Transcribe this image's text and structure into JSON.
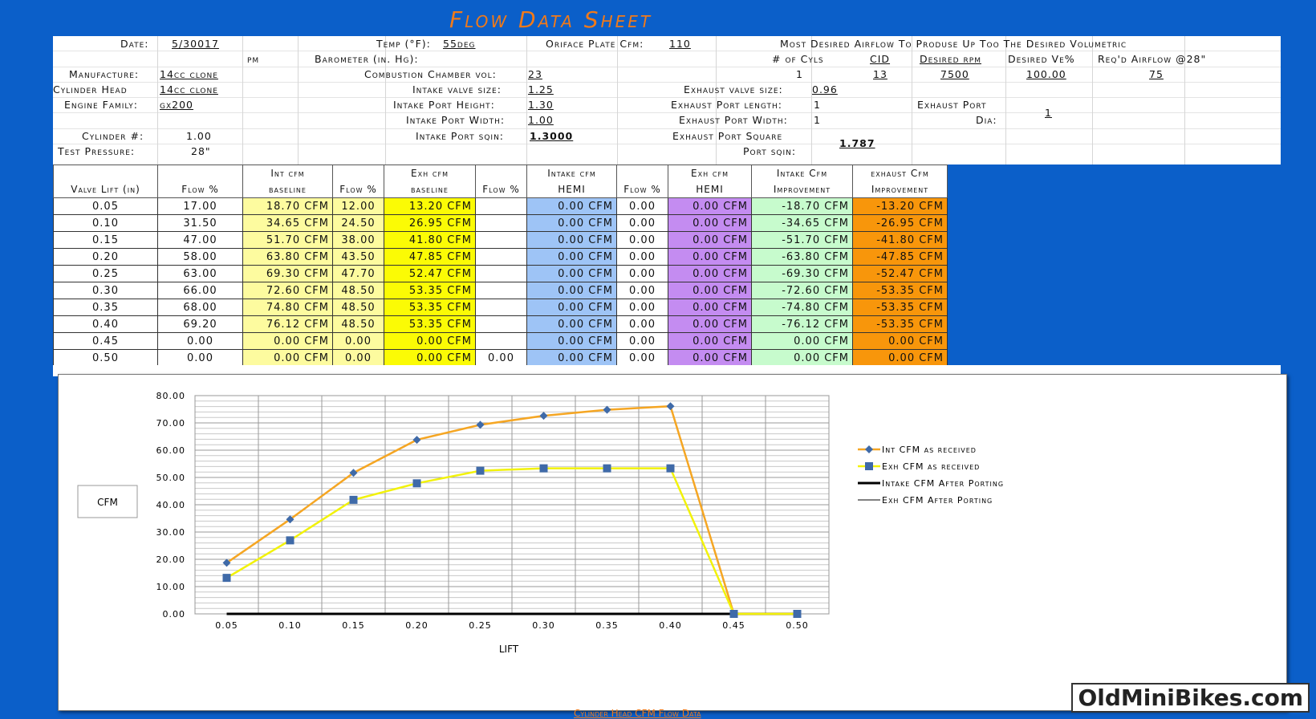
{
  "title": "Flow Data Sheet",
  "header": {
    "date_label": "Date:",
    "date": "5/30017",
    "pm": "pm",
    "temp_label": "Temp (°F):",
    "temp": "55deg",
    "orifice_label": "Oriface Plate Cfm:",
    "orifice": "110",
    "desired_note": "Most Desired Airflow To Produse Up Too The Desired Volumetric",
    "barometer_label": "Barometer (in. Hg):",
    "cyls_label": "# of Cyls",
    "cyls": "1",
    "cid_label": "CID",
    "cid": "13",
    "rpm_label": "Desired rpm",
    "rpm": "7500",
    "ve_label": "Desired Ve%",
    "ve": "100.00",
    "reqd_label": "Req'd Airflow @28\"",
    "reqd": "75",
    "manufacture_label": "Manufacture:",
    "manufacture": "14cc clone",
    "chamber_label": "Combustion Chamber vol:",
    "chamber": "23",
    "head_label": "Cylinder Head",
    "head": "14cc clone",
    "intake_size_label": "Intake valve size:",
    "intake_size": "1.25",
    "exhaust_size_label": "Exhaust valve size:",
    "exhaust_size": "0.96",
    "family_label": "Engine Family:",
    "family": "gx200",
    "intake_height_label": "Intake Port Height:",
    "intake_height": "1.30",
    "exhaust_length_label": "Exhaust Port length:",
    "exhaust_length": "1",
    "exhaust_port_label": "Exhaust Port",
    "dia_label": "Dia:",
    "dia": "1",
    "intake_width_label": "Intake Port Width:",
    "intake_width": "1.00",
    "exhaust_width_label": "Exhaust Port Width:",
    "exhaust_width": "1",
    "cylinder_label": "Cylinder #:",
    "cylinder": "1.00",
    "intake_sqin_label": "Intake Port sqin:",
    "intake_sqin": "1.3000",
    "exhaust_square_label": "Exhaust Port Square",
    "port_sqin_label": "Port sqin:",
    "exhaust_sqin": "1.787",
    "test_pressure_label": "Test Pressure:",
    "test_pressure": "28\""
  },
  "table": {
    "head_top": [
      "",
      "",
      "Int cfm",
      "",
      "Exh cfm",
      "",
      "Intake cfm",
      "",
      "Exh cfm",
      "Intake Cfm",
      "exhaust Cfm"
    ],
    "head_bot": [
      "Valve Lift (in)",
      "Flow %",
      "baseline",
      "Flow %",
      "baseline",
      "Flow %",
      "HEMI",
      "Flow %",
      "HEMI",
      "Improvement",
      "Improvement"
    ],
    "rows": [
      [
        "0.05",
        "17.00",
        "18.70 CFM",
        "12.00",
        "13.20 CFM",
        "",
        "0.00 CFM",
        "0.00",
        "0.00 CFM",
        "-18.70 CFM",
        "-13.20 CFM"
      ],
      [
        "0.10",
        "31.50",
        "34.65 CFM",
        "24.50",
        "26.95 CFM",
        "",
        "0.00 CFM",
        "0.00",
        "0.00 CFM",
        "-34.65 CFM",
        "-26.95 CFM"
      ],
      [
        "0.15",
        "47.00",
        "51.70 CFM",
        "38.00",
        "41.80 CFM",
        "",
        "0.00 CFM",
        "0.00",
        "0.00 CFM",
        "-51.70 CFM",
        "-41.80 CFM"
      ],
      [
        "0.20",
        "58.00",
        "63.80 CFM",
        "43.50",
        "47.85 CFM",
        "",
        "0.00 CFM",
        "0.00",
        "0.00 CFM",
        "-63.80 CFM",
        "-47.85 CFM"
      ],
      [
        "0.25",
        "63.00",
        "69.30 CFM",
        "47.70",
        "52.47 CFM",
        "",
        "0.00 CFM",
        "0.00",
        "0.00 CFM",
        "-69.30 CFM",
        "-52.47 CFM"
      ],
      [
        "0.30",
        "66.00",
        "72.60 CFM",
        "48.50",
        "53.35 CFM",
        "",
        "0.00 CFM",
        "0.00",
        "0.00 CFM",
        "-72.60 CFM",
        "-53.35 CFM"
      ],
      [
        "0.35",
        "68.00",
        "74.80 CFM",
        "48.50",
        "53.35 CFM",
        "",
        "0.00 CFM",
        "0.00",
        "0.00 CFM",
        "-74.80 CFM",
        "-53.35 CFM"
      ],
      [
        "0.40",
        "69.20",
        "76.12 CFM",
        "48.50",
        "53.35 CFM",
        "",
        "0.00 CFM",
        "0.00",
        "0.00 CFM",
        "-76.12 CFM",
        "-53.35 CFM"
      ],
      [
        "0.45",
        "0.00",
        "0.00 CFM",
        "0.00",
        "0.00 CFM",
        "",
        "0.00 CFM",
        "0.00",
        "0.00 CFM",
        "0.00 CFM",
        "0.00 CFM"
      ],
      [
        "0.50",
        "0.00",
        "0.00 CFM",
        "0.00",
        "0.00 CFM",
        "0.00",
        "0.00 CFM",
        "0.00",
        "0.00 CFM",
        "0.00 CFM",
        "0.00 CFM"
      ]
    ]
  },
  "colors": {
    "orange_line": "#f5a623",
    "yellow_line": "#f2f20a",
    "marker": "#3f6aa8",
    "background": "#0b5fc9"
  },
  "chart_data": {
    "type": "line",
    "x": [
      "0.05",
      "0.10",
      "0.15",
      "0.20",
      "0.25",
      "0.30",
      "0.35",
      "0.40",
      "0.45",
      "0.50"
    ],
    "ylim": [
      0,
      80
    ],
    "ytick_labels": [
      "0.00",
      "10.00",
      "20.00",
      "30.00",
      "40.00",
      "50.00",
      "60.00",
      "70.00",
      "80.00"
    ],
    "xlabel": "LIFT",
    "ylabel": "CFM",
    "grid": true,
    "legend_position": "right",
    "series": [
      {
        "name": "Int CFM as received",
        "values": [
          18.7,
          34.65,
          51.7,
          63.8,
          69.3,
          72.6,
          74.8,
          76.12,
          0,
          0
        ],
        "color": "#f5a623",
        "marker": "diamond"
      },
      {
        "name": "Exh CFM as received",
        "values": [
          13.2,
          26.95,
          41.8,
          47.85,
          52.47,
          53.35,
          53.35,
          53.35,
          0,
          0
        ],
        "color": "#f2f20a",
        "marker": "square"
      },
      {
        "name": "Intake CFM After Porting",
        "values": [
          0,
          0,
          0,
          0,
          0,
          0,
          0,
          0,
          0,
          0
        ],
        "color": "#000000",
        "marker": "none"
      },
      {
        "name": "Exh CFM After Porting",
        "values": [
          0,
          0,
          0,
          0,
          0,
          0,
          0,
          0,
          0,
          0
        ],
        "color": "#000000",
        "marker": "none"
      }
    ]
  },
  "footer": {
    "subtitle": "Cylinder Head CFM Flow Data",
    "watermark": "OldMiniBikes.com"
  }
}
